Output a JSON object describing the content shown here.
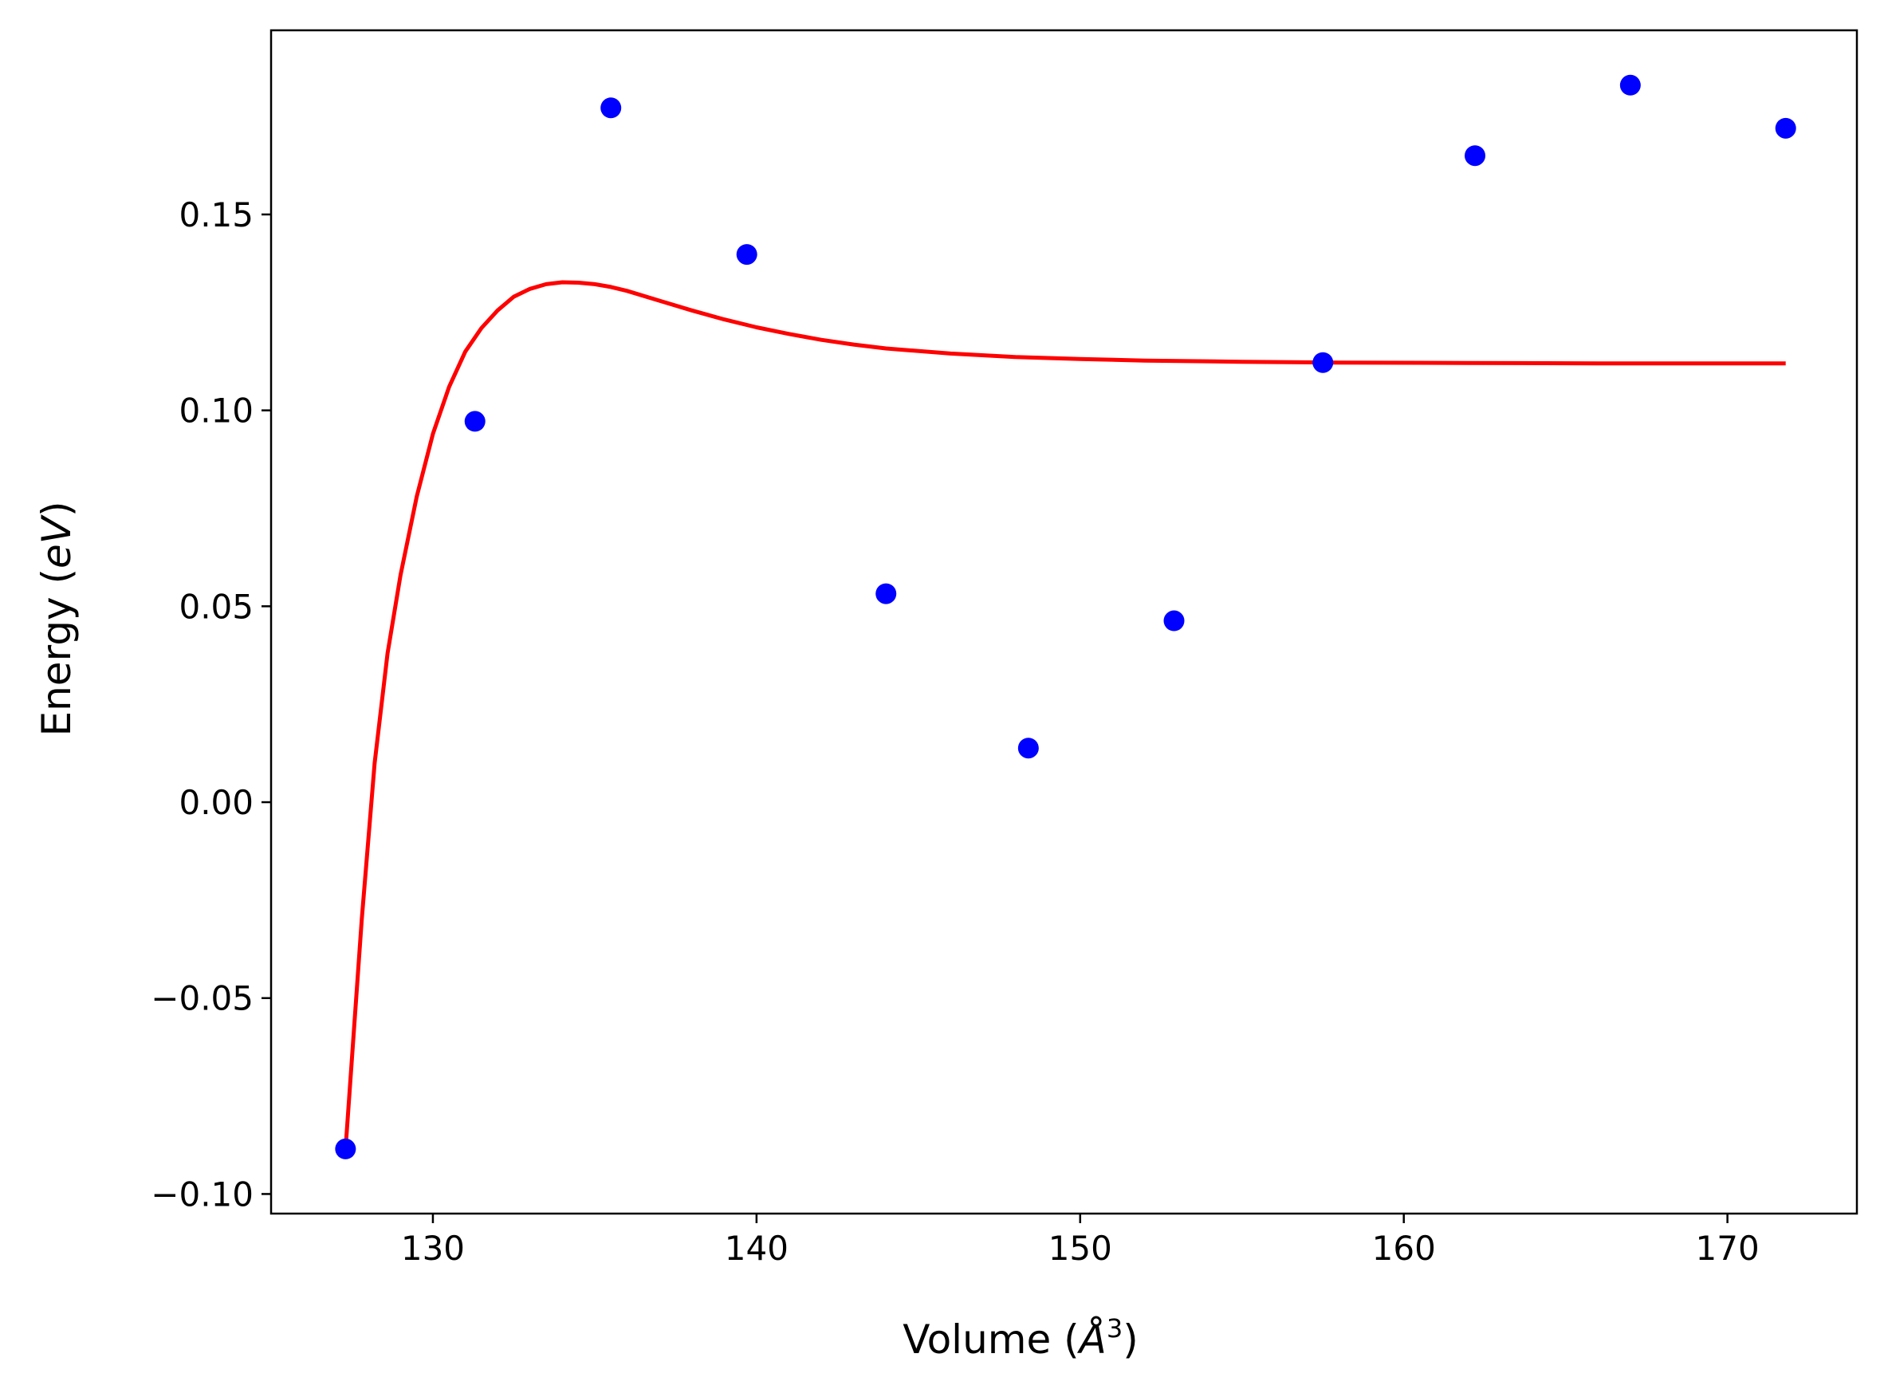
{
  "chart_data": {
    "type": "scatter",
    "title": "",
    "xlabel": {
      "prefix": "Volume (",
      "unit_symbol": "Å",
      "unit_exponent": "3",
      "suffix": ")"
    },
    "ylabel": {
      "prefix": "Energy (",
      "unit": "eV",
      "suffix": ")"
    },
    "xlim": [
      125,
      174
    ],
    "ylim": [
      -0.105,
      0.197
    ],
    "x_ticks": [
      130,
      140,
      150,
      160,
      170
    ],
    "x_tick_labels": [
      "130",
      "140",
      "150",
      "160",
      "170"
    ],
    "y_ticks": [
      -0.1,
      -0.05,
      0.0,
      0.05,
      0.1,
      0.15
    ],
    "y_tick_labels": [
      "−0.10",
      "−0.05",
      "0.00",
      "0.05",
      "0.10",
      "0.15"
    ],
    "grid": false,
    "legend": null,
    "series": [
      {
        "type": "scatter",
        "color": "#0000ff",
        "x": [
          127.3,
          131.3,
          135.5,
          139.7,
          144.0,
          148.4,
          152.9,
          157.5,
          162.2,
          167.0,
          171.8
        ],
        "y": [
          -0.0885,
          0.0972,
          0.1772,
          0.1398,
          0.0532,
          0.0138,
          0.0463,
          0.1122,
          0.165,
          0.183,
          0.172
        ]
      },
      {
        "type": "line",
        "color": "#ff0000",
        "x": [
          127.3,
          127.8,
          128.2,
          128.6,
          129.0,
          129.5,
          130.0,
          130.5,
          131.0,
          131.5,
          132.0,
          132.5,
          133.0,
          133.5,
          134.0,
          134.5,
          135.0,
          135.5,
          136.0,
          137.0,
          138.0,
          139.0,
          140.0,
          141.0,
          142.0,
          143.0,
          144.0,
          146.0,
          148.0,
          150.0,
          152.0,
          155.0,
          158.0,
          162.0,
          166.0,
          171.8
        ],
        "y": [
          -0.0885,
          -0.03,
          0.01,
          0.038,
          0.058,
          0.078,
          0.094,
          0.106,
          0.115,
          0.121,
          0.1255,
          0.129,
          0.131,
          0.1322,
          0.1327,
          0.1326,
          0.1322,
          0.1315,
          0.1305,
          0.128,
          0.1255,
          0.1232,
          0.1212,
          0.1195,
          0.118,
          0.1168,
          0.1158,
          0.1145,
          0.1136,
          0.1131,
          0.1127,
          0.1124,
          0.1122,
          0.1121,
          0.112,
          0.112
        ]
      }
    ]
  }
}
